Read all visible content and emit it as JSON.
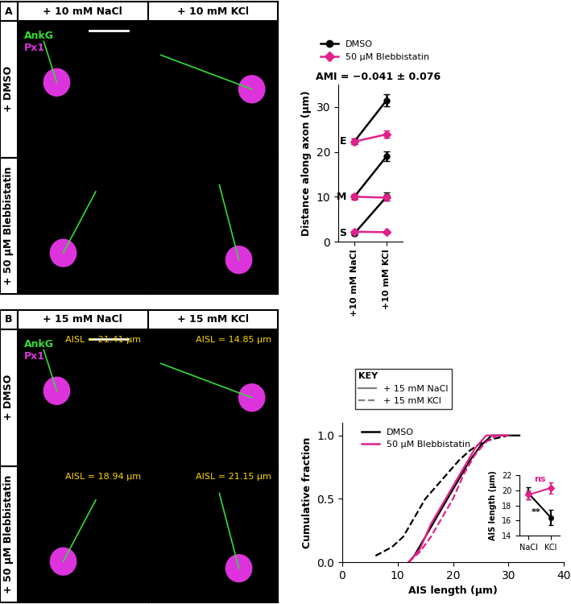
{
  "panels": [
    {
      "label": "A",
      "columns": [
        "+ 10 mM NaCl",
        "+ 10 mM KCl"
      ],
      "rows": [
        "+ DMSO",
        "+ 50 µM Blebbistatin"
      ],
      "channels": [
        {
          "name": "AnkG",
          "color": "#33dd33"
        },
        {
          "name": "Px1",
          "color": "#dd33dd"
        }
      ]
    },
    {
      "label": "B",
      "columns": [
        "+ 15 mM NaCl",
        "+ 15 mM KCl"
      ],
      "rows": [
        "+ DMSO",
        "+ 50 µM Blebbistatin"
      ],
      "channels": [
        {
          "name": "AnkG",
          "color": "#33dd33"
        },
        {
          "name": "Px1",
          "color": "#dd33dd"
        }
      ],
      "image_texts": [
        [
          "AISL = 21.41 µm",
          "AISL = 14.85 µm"
        ],
        [
          "AISL = 18.94 µm",
          "AISL = 21.15 µm"
        ]
      ],
      "image_text_color": "#ffd700"
    }
  ],
  "chart_data": [
    {
      "type": "line",
      "annotation": "AMI = −0.041 ± 0.076",
      "categories": [
        "+10 mM NaCl",
        "+10 mM KCl"
      ],
      "ylabel": "Distance along axon (µm)",
      "ylim": [
        0,
        35
      ],
      "yticks": [
        0,
        10,
        20,
        30
      ],
      "line_labels": [
        "E",
        "M",
        "S"
      ],
      "legend": "lower left",
      "series": [
        {
          "name": "DMSO",
          "color": "#000000",
          "marker": "circle",
          "values": [
            [
              22.3,
              31.5
            ],
            [
              10.0,
              19.0
            ],
            [
              1.8,
              10.0
            ]
          ],
          "errors": [
            [
              0.6,
              1.3
            ],
            [
              0.5,
              1.1
            ],
            [
              0.3,
              0.9
            ]
          ]
        },
        {
          "name": "50 µM Blebbistatin",
          "color": "#e0218a",
          "marker": "diamond",
          "values": [
            [
              22.3,
              23.9
            ],
            [
              10.0,
              9.8
            ],
            [
              2.2,
              2.1
            ]
          ],
          "errors": [
            [
              0.6,
              0.8
            ],
            [
              0.6,
              0.6
            ],
            [
              0.3,
              0.3
            ]
          ]
        }
      ]
    },
    {
      "type": "line",
      "xlabel": "AIS length (µm)",
      "ylabel": "Cumulative fraction",
      "xlim": [
        0,
        40
      ],
      "xticks": [
        0,
        10,
        20,
        30,
        40
      ],
      "ylim": [
        0,
        1.1
      ],
      "yticks": [
        {
          "value": 0,
          "label": "0.0"
        },
        {
          "value": 0.5,
          "label": "0.5"
        },
        {
          "value": 1.0,
          "label": "1.0"
        }
      ],
      "legend": "upper left",
      "key_title": "KEY",
      "key": [
        {
          "name": "+ 15 mM NaCl",
          "line_style": "solid",
          "color": "#808080"
        },
        {
          "name": "+ 15 mM KCl",
          "line_style": "dashed",
          "color": "#808080"
        }
      ],
      "treatments": [
        {
          "name": "DMSO",
          "color": "#000000"
        },
        {
          "name": "50 µM Blebbistatin",
          "color": "#e0218a"
        }
      ],
      "series": [
        {
          "treatment": "DMSO",
          "condition": "+ 15 mM NaCl",
          "color": "#000000",
          "line_style": "solid",
          "x": [
            12,
            13,
            15,
            17,
            19,
            21,
            23,
            25,
            27,
            32
          ],
          "values": [
            0,
            0.05,
            0.2,
            0.35,
            0.5,
            0.65,
            0.8,
            0.92,
            1.0,
            1.0
          ]
        },
        {
          "treatment": "DMSO",
          "condition": "+ 15 mM KCl",
          "color": "#000000",
          "line_style": "dashed",
          "x": [
            6,
            9,
            11,
            13,
            15,
            17,
            19,
            21,
            23,
            25,
            27,
            30
          ],
          "values": [
            0.05,
            0.12,
            0.2,
            0.35,
            0.5,
            0.6,
            0.7,
            0.8,
            0.88,
            0.94,
            0.97,
            1.0
          ]
        },
        {
          "treatment": "50 µM Blebbistatin",
          "condition": "+ 15 mM NaCl",
          "color": "#e0218a",
          "line_style": "solid",
          "x": [
            12,
            14,
            16,
            18,
            20,
            22,
            24,
            26,
            30
          ],
          "values": [
            0,
            0.1,
            0.3,
            0.45,
            0.6,
            0.75,
            0.9,
            1.0,
            1.0
          ]
        },
        {
          "treatment": "50 µM Blebbistatin",
          "condition": "+ 15 mM KCl",
          "color": "#e0218a",
          "line_style": "dashed",
          "x": [
            12,
            14,
            16,
            18,
            20,
            22,
            24,
            26,
            28,
            30
          ],
          "values": [
            0,
            0.08,
            0.2,
            0.35,
            0.5,
            0.7,
            0.85,
            0.95,
            1.0,
            1.0
          ]
        }
      ]
    },
    {
      "type": "line",
      "categories": [
        "NaCl",
        "KCl"
      ],
      "ylabel": "AIS length (µm)",
      "ylim": [
        14,
        22
      ],
      "yticks": [
        14,
        16,
        18,
        20,
        22
      ],
      "series": [
        {
          "name": "DMSO",
          "color": "#000000",
          "marker": "circle",
          "values": [
            19.6,
            16.4
          ],
          "errors": [
            0.8,
            1.0
          ]
        },
        {
          "name": "50 µM Blebbistatin",
          "color": "#e0218a",
          "marker": "diamond",
          "values": [
            19.4,
            20.3
          ],
          "errors": [
            0.6,
            0.7
          ]
        }
      ],
      "annotations": [
        {
          "text": "ns",
          "color": "#e0218a"
        },
        {
          "text": "**",
          "color": "#000000"
        }
      ]
    }
  ]
}
